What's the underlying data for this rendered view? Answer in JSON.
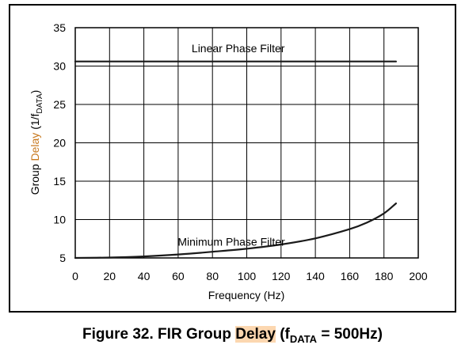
{
  "chart_data": {
    "type": "line",
    "xlabel": "Frequency (Hz)",
    "ylabel": {
      "pre": "Group ",
      "highlight": "Delay",
      "post": " (1/f",
      "sub": "DATA",
      "close": ")"
    },
    "xlim": [
      0,
      200
    ],
    "ylim": [
      5,
      35
    ],
    "xticks": [
      "0",
      "20",
      "40",
      "60",
      "80",
      "100",
      "120",
      "140",
      "160",
      "180",
      "200"
    ],
    "yticks": [
      "5",
      "10",
      "15",
      "20",
      "25",
      "30",
      "35"
    ],
    "grid": true,
    "series": [
      {
        "name": "Linear Phase Filter",
        "x": [
          0,
          187
        ],
        "y": [
          30.6,
          30.6
        ]
      },
      {
        "name": "Minimum Phase Filter",
        "x": [
          0,
          20,
          40,
          60,
          80,
          100,
          120,
          140,
          160,
          170,
          180,
          187
        ],
        "y": [
          5.0,
          5.05,
          5.2,
          5.45,
          5.8,
          6.2,
          6.75,
          7.55,
          8.75,
          9.6,
          10.8,
          12.1
        ]
      }
    ],
    "annotations": [
      {
        "text": "Linear Phase Filter",
        "x": 95,
        "y": 32.3
      },
      {
        "text": "Minimum Phase Filter",
        "x": 91,
        "y": 7.1
      }
    ]
  },
  "caption": {
    "pre": "Figure 32.  FIR Group ",
    "highlight": "Delay",
    "mid": " (f",
    "sub": "DATA",
    "post": " = 500Hz)"
  }
}
